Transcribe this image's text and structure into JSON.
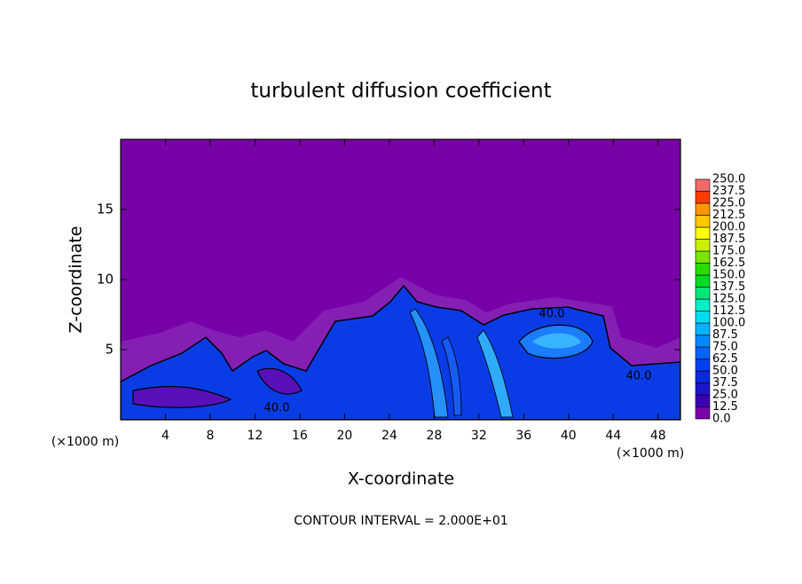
{
  "chart_data": {
    "type": "contour",
    "title": "turbulent diffusion coefficient",
    "xlabel": "X-coordinate",
    "ylabel": "Z-coordinate",
    "x_unit": "(×1000 m)",
    "xlim": [
      0,
      50
    ],
    "xticks": [
      4,
      8,
      12,
      16,
      20,
      24,
      28,
      32,
      36,
      40,
      44,
      48
    ],
    "ylim": [
      0,
      20
    ],
    "yticks": [
      5,
      10,
      15
    ],
    "colorbar": {
      "levels": [
        {
          "value": 0,
          "label": "0.0"
        },
        {
          "value": 12.5,
          "label": "12.5"
        },
        {
          "value": 25,
          "label": "25.0"
        },
        {
          "value": 37.5,
          "label": "37.5"
        },
        {
          "value": 50,
          "label": "50.0"
        },
        {
          "value": 62.5,
          "label": "62.5"
        },
        {
          "value": 75,
          "label": "75.0"
        },
        {
          "value": 87.5,
          "label": "87.5"
        },
        {
          "value": 100,
          "label": "100.0"
        },
        {
          "value": 112.5,
          "label": "112.5"
        },
        {
          "value": 125,
          "label": "125.0"
        },
        {
          "value": 137.5,
          "label": "137.5"
        },
        {
          "value": 150,
          "label": "150.0"
        },
        {
          "value": 162.5,
          "label": "162.5"
        },
        {
          "value": 175,
          "label": "175.0"
        },
        {
          "value": 187.5,
          "label": "187.5"
        },
        {
          "value": 200,
          "label": "200.0"
        },
        {
          "value": 212.5,
          "label": "212.5"
        },
        {
          "value": 225,
          "label": "225.0"
        },
        {
          "value": 237.5,
          "label": "237.5"
        },
        {
          "value": 250,
          "label": "250.0"
        }
      ],
      "colors": [
        "#7800a8",
        "#3c00b4",
        "#1e14c8",
        "#0a28dc",
        "#0040f0",
        "#0064ff",
        "#0088ff",
        "#00b4ff",
        "#00dcf0",
        "#00f0c8",
        "#00e678",
        "#00dc28",
        "#28dc00",
        "#78e600",
        "#c8f000",
        "#ffff00",
        "#ffc800",
        "#ff9600",
        "#ff3c00",
        "#f06a6a"
      ]
    },
    "contour_labels": [
      {
        "value": 40,
        "label": "40.0"
      },
      {
        "value": 40,
        "label": "40.0"
      },
      {
        "value": 40,
        "label": "40.0"
      }
    ],
    "footnote": "CONTOUR INTERVAL = 2.000E+01"
  }
}
